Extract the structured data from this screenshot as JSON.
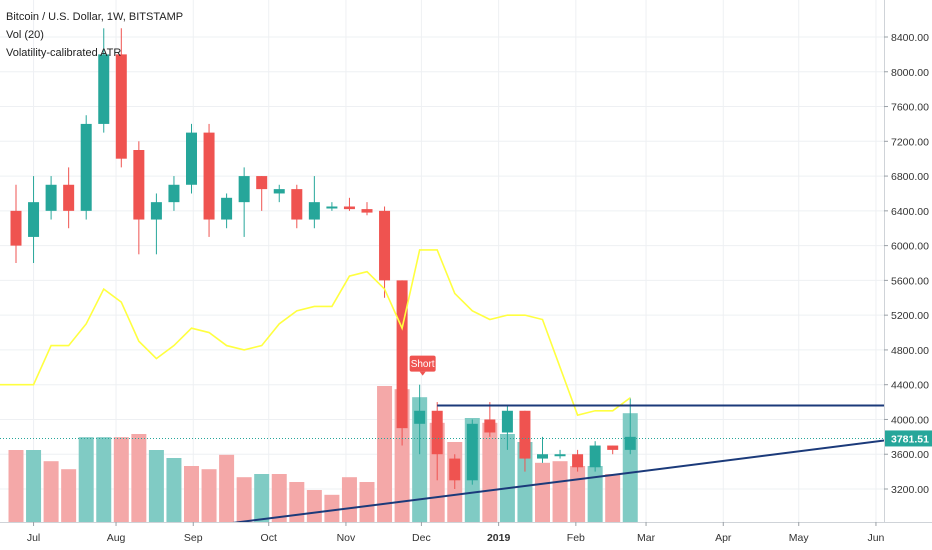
{
  "header": {
    "symbol_line": "Bitcoin / U.S. Dollar, 1W, BITSTAMP",
    "volume_line": "Vol (20)",
    "indicator_line": "Volatility-calibrated ATR"
  },
  "price_badge": "3781.51",
  "short_label": "Short",
  "colors": {
    "bull": "#26a69a",
    "bear": "#ef5350",
    "bull_vol": "#80cbc4",
    "bear_vol": "#f4a8a8",
    "atr": "#ffff40",
    "trendline": "#1b3a7a",
    "badge": "#26a69a",
    "grid": "#eef0f3",
    "price_line": "#26a69a"
  },
  "chart_data": {
    "type": "candlestick",
    "title": "Bitcoin / U.S. Dollar, 1W, BITSTAMP",
    "last_price": 3781.51,
    "y_axis": {
      "ticks": [
        "3200.00",
        "3600.00",
        "4000.00",
        "4400.00",
        "4800.00",
        "5200.00",
        "5600.00",
        "6000.00",
        "6400.00",
        "6800.00",
        "7200.00",
        "7600.00",
        "8000.00",
        "8400.00"
      ],
      "range": [
        2800,
        8800
      ]
    },
    "x_axis": {
      "ticks": [
        {
          "label": "Jul",
          "week": 1
        },
        {
          "label": "Aug",
          "week": 5.7
        },
        {
          "label": "Sep",
          "week": 10.1
        },
        {
          "label": "Oct",
          "week": 14.4
        },
        {
          "label": "Nov",
          "week": 18.8
        },
        {
          "label": "Dec",
          "week": 23.1
        },
        {
          "label": "2019",
          "week": 27.5,
          "bold": true
        },
        {
          "label": "Feb",
          "week": 31.9
        },
        {
          "label": "Mar",
          "week": 35.9
        },
        {
          "label": "Apr",
          "week": 40.3
        },
        {
          "label": "May",
          "week": 44.6
        },
        {
          "label": "Jun",
          "week": 49
        }
      ]
    },
    "candles": [
      {
        "o": 6400,
        "h": 6700,
        "l": 5800,
        "c": 6000
      },
      {
        "o": 6100,
        "h": 6800,
        "l": 5800,
        "c": 6500
      },
      {
        "o": 6400,
        "h": 6800,
        "l": 6300,
        "c": 6700
      },
      {
        "o": 6700,
        "h": 6900,
        "l": 6200,
        "c": 6400
      },
      {
        "o": 6400,
        "h": 7500,
        "l": 6300,
        "c": 7400
      },
      {
        "o": 7400,
        "h": 8500,
        "l": 7300,
        "c": 8200
      },
      {
        "o": 8200,
        "h": 8500,
        "l": 6900,
        "c": 7000
      },
      {
        "o": 7100,
        "h": 7200,
        "l": 5900,
        "c": 6300
      },
      {
        "o": 6300,
        "h": 6600,
        "l": 5900,
        "c": 6500
      },
      {
        "o": 6500,
        "h": 6800,
        "l": 6400,
        "c": 6700
      },
      {
        "o": 6700,
        "h": 7400,
        "l": 6600,
        "c": 7300
      },
      {
        "o": 7300,
        "h": 7400,
        "l": 6100,
        "c": 6300
      },
      {
        "o": 6300,
        "h": 6600,
        "l": 6200,
        "c": 6550
      },
      {
        "o": 6500,
        "h": 6900,
        "l": 6100,
        "c": 6800
      },
      {
        "o": 6800,
        "h": 6800,
        "l": 6400,
        "c": 6650
      },
      {
        "o": 6600,
        "h": 6700,
        "l": 6500,
        "c": 6650
      },
      {
        "o": 6650,
        "h": 6700,
        "l": 6200,
        "c": 6300
      },
      {
        "o": 6300,
        "h": 6800,
        "l": 6200,
        "c": 6500
      },
      {
        "o": 6450,
        "h": 6500,
        "l": 6400,
        "c": 6450
      },
      {
        "o": 6450,
        "h": 6550,
        "l": 6400,
        "c": 6420
      },
      {
        "o": 6420,
        "h": 6500,
        "l": 6350,
        "c": 6380
      },
      {
        "o": 6400,
        "h": 6450,
        "l": 5400,
        "c": 5600
      },
      {
        "o": 5600,
        "h": 5600,
        "l": 3700,
        "c": 3900
      },
      {
        "o": 3950,
        "h": 4400,
        "l": 3600,
        "c": 4100
      },
      {
        "o": 4100,
        "h": 4200,
        "l": 3300,
        "c": 3600
      },
      {
        "o": 3550,
        "h": 3600,
        "l": 3200,
        "c": 3300
      },
      {
        "o": 3300,
        "h": 4000,
        "l": 3250,
        "c": 3950
      },
      {
        "o": 4000,
        "h": 4200,
        "l": 3800,
        "c": 3850
      },
      {
        "o": 3850,
        "h": 4150,
        "l": 3650,
        "c": 4100
      },
      {
        "o": 4100,
        "h": 4100,
        "l": 3400,
        "c": 3550
      },
      {
        "o": 3550,
        "h": 3800,
        "l": 3500,
        "c": 3600
      },
      {
        "o": 3600,
        "h": 3650,
        "l": 3550,
        "c": 3600
      },
      {
        "o": 3600,
        "h": 3650,
        "l": 3400,
        "c": 3450
      },
      {
        "o": 3450,
        "h": 3750,
        "l": 3400,
        "c": 3700
      },
      {
        "o": 3700,
        "h": 3700,
        "l": 3600,
        "c": 3650
      },
      {
        "o": 3650,
        "h": 4250,
        "l": 3600,
        "c": 3800
      }
    ],
    "volume": [
      {
        "v": 0.45,
        "bull": false
      },
      {
        "v": 0.45,
        "bull": true
      },
      {
        "v": 0.38,
        "bull": false
      },
      {
        "v": 0.33,
        "bull": false
      },
      {
        "v": 0.53,
        "bull": true
      },
      {
        "v": 0.53,
        "bull": true
      },
      {
        "v": 0.53,
        "bull": false
      },
      {
        "v": 0.55,
        "bull": false
      },
      {
        "v": 0.45,
        "bull": true
      },
      {
        "v": 0.4,
        "bull": true
      },
      {
        "v": 0.35,
        "bull": false
      },
      {
        "v": 0.33,
        "bull": false
      },
      {
        "v": 0.42,
        "bull": false
      },
      {
        "v": 0.28,
        "bull": false
      },
      {
        "v": 0.3,
        "bull": true
      },
      {
        "v": 0.3,
        "bull": false
      },
      {
        "v": 0.25,
        "bull": false
      },
      {
        "v": 0.2,
        "bull": false
      },
      {
        "v": 0.17,
        "bull": false
      },
      {
        "v": 0.28,
        "bull": false
      },
      {
        "v": 0.25,
        "bull": false
      },
      {
        "v": 0.85,
        "bull": false
      },
      {
        "v": 0.83,
        "bull": false
      },
      {
        "v": 0.78,
        "bull": true
      },
      {
        "v": 0.62,
        "bull": false
      },
      {
        "v": 0.5,
        "bull": false
      },
      {
        "v": 0.65,
        "bull": true
      },
      {
        "v": 0.62,
        "bull": false
      },
      {
        "v": 0.55,
        "bull": true
      },
      {
        "v": 0.5,
        "bull": true
      },
      {
        "v": 0.37,
        "bull": false
      },
      {
        "v": 0.38,
        "bull": false
      },
      {
        "v": 0.35,
        "bull": false
      },
      {
        "v": 0.35,
        "bull": true
      },
      {
        "v": 0.3,
        "bull": false
      },
      {
        "v": 0.68,
        "bull": true
      }
    ],
    "atr_line": [
      4400,
      4400,
      4850,
      4850,
      5100,
      5500,
      5350,
      4900,
      4700,
      4850,
      5050,
      5000,
      4850,
      4800,
      4850,
      5100,
      5250,
      5300,
      5300,
      5650,
      5700,
      5500,
      5050,
      5950,
      5950,
      5450,
      5250,
      5150,
      5200,
      5200,
      5150,
      4600,
      4050,
      4100,
      4100,
      4250
    ],
    "annotations": [
      {
        "type": "label",
        "text": "Short",
        "week": 23,
        "price": 4550
      },
      {
        "type": "horizontal_line",
        "from_week": 24,
        "to_week": 55,
        "price": 4160
      },
      {
        "type": "trendline",
        "from": {
          "week": 12,
          "price": 2800
        },
        "to": {
          "week": 57,
          "price": 3950
        }
      }
    ]
  }
}
